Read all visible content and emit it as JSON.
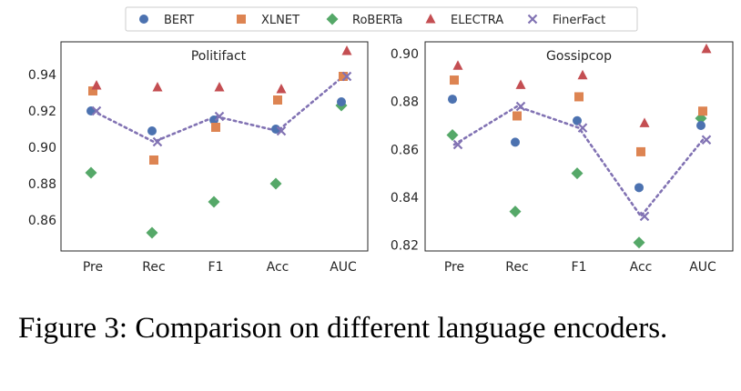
{
  "legend": [
    {
      "name": "BERT",
      "marker": "circle",
      "color": "#4c72b0"
    },
    {
      "name": "XLNET",
      "marker": "square",
      "color": "#dd8452"
    },
    {
      "name": "RoBERTa",
      "marker": "diamond",
      "color": "#55a868"
    },
    {
      "name": "ELECTRA",
      "marker": "triangle",
      "color": "#c44e52"
    },
    {
      "name": "FinerFact",
      "marker": "x",
      "color": "#8172b3"
    }
  ],
  "caption": "Figure 3: Comparison on different language encoders.",
  "chart_data": [
    {
      "type": "scatter",
      "title": "Politifact",
      "categories": [
        "Pre",
        "Rec",
        "F1",
        "Acc",
        "AUC"
      ],
      "ylim": [
        0.843,
        0.958
      ],
      "yticks": [
        0.86,
        0.88,
        0.9,
        0.92,
        0.94
      ],
      "ytick_labels": [
        "0.86",
        "0.88",
        "0.90",
        "0.92",
        "0.94"
      ],
      "series": [
        {
          "name": "BERT",
          "values": [
            0.92,
            0.909,
            0.915,
            0.91,
            0.925
          ]
        },
        {
          "name": "XLNET",
          "values": [
            0.931,
            0.893,
            0.911,
            0.926,
            0.939
          ]
        },
        {
          "name": "RoBERTa",
          "values": [
            0.886,
            0.853,
            0.87,
            0.88,
            0.923
          ]
        },
        {
          "name": "ELECTRA",
          "values": [
            0.934,
            0.933,
            0.933,
            0.932,
            0.953
          ]
        },
        {
          "name": "FinerFact",
          "values": [
            0.92,
            0.903,
            0.917,
            0.909,
            0.939
          ],
          "line": "dotted"
        }
      ]
    },
    {
      "type": "scatter",
      "title": "Gossipcop",
      "categories": [
        "Pre",
        "Rec",
        "F1",
        "Acc",
        "AUC"
      ],
      "ylim": [
        0.8175,
        0.905
      ],
      "yticks": [
        0.82,
        0.84,
        0.86,
        0.88,
        0.9
      ],
      "ytick_labels": [
        "0.82",
        "0.84",
        "0.86",
        "0.88",
        "0.90"
      ],
      "series": [
        {
          "name": "BERT",
          "values": [
            0.881,
            0.863,
            0.872,
            0.844,
            0.87
          ]
        },
        {
          "name": "XLNET",
          "values": [
            0.889,
            0.874,
            0.882,
            0.859,
            0.876
          ]
        },
        {
          "name": "RoBERTa",
          "values": [
            0.866,
            0.834,
            0.85,
            0.821,
            0.873
          ]
        },
        {
          "name": "ELECTRA",
          "values": [
            0.895,
            0.887,
            0.891,
            0.871,
            0.902
          ]
        },
        {
          "name": "FinerFact",
          "values": [
            0.862,
            0.878,
            0.869,
            0.832,
            0.864
          ],
          "line": "dotted"
        }
      ]
    }
  ]
}
